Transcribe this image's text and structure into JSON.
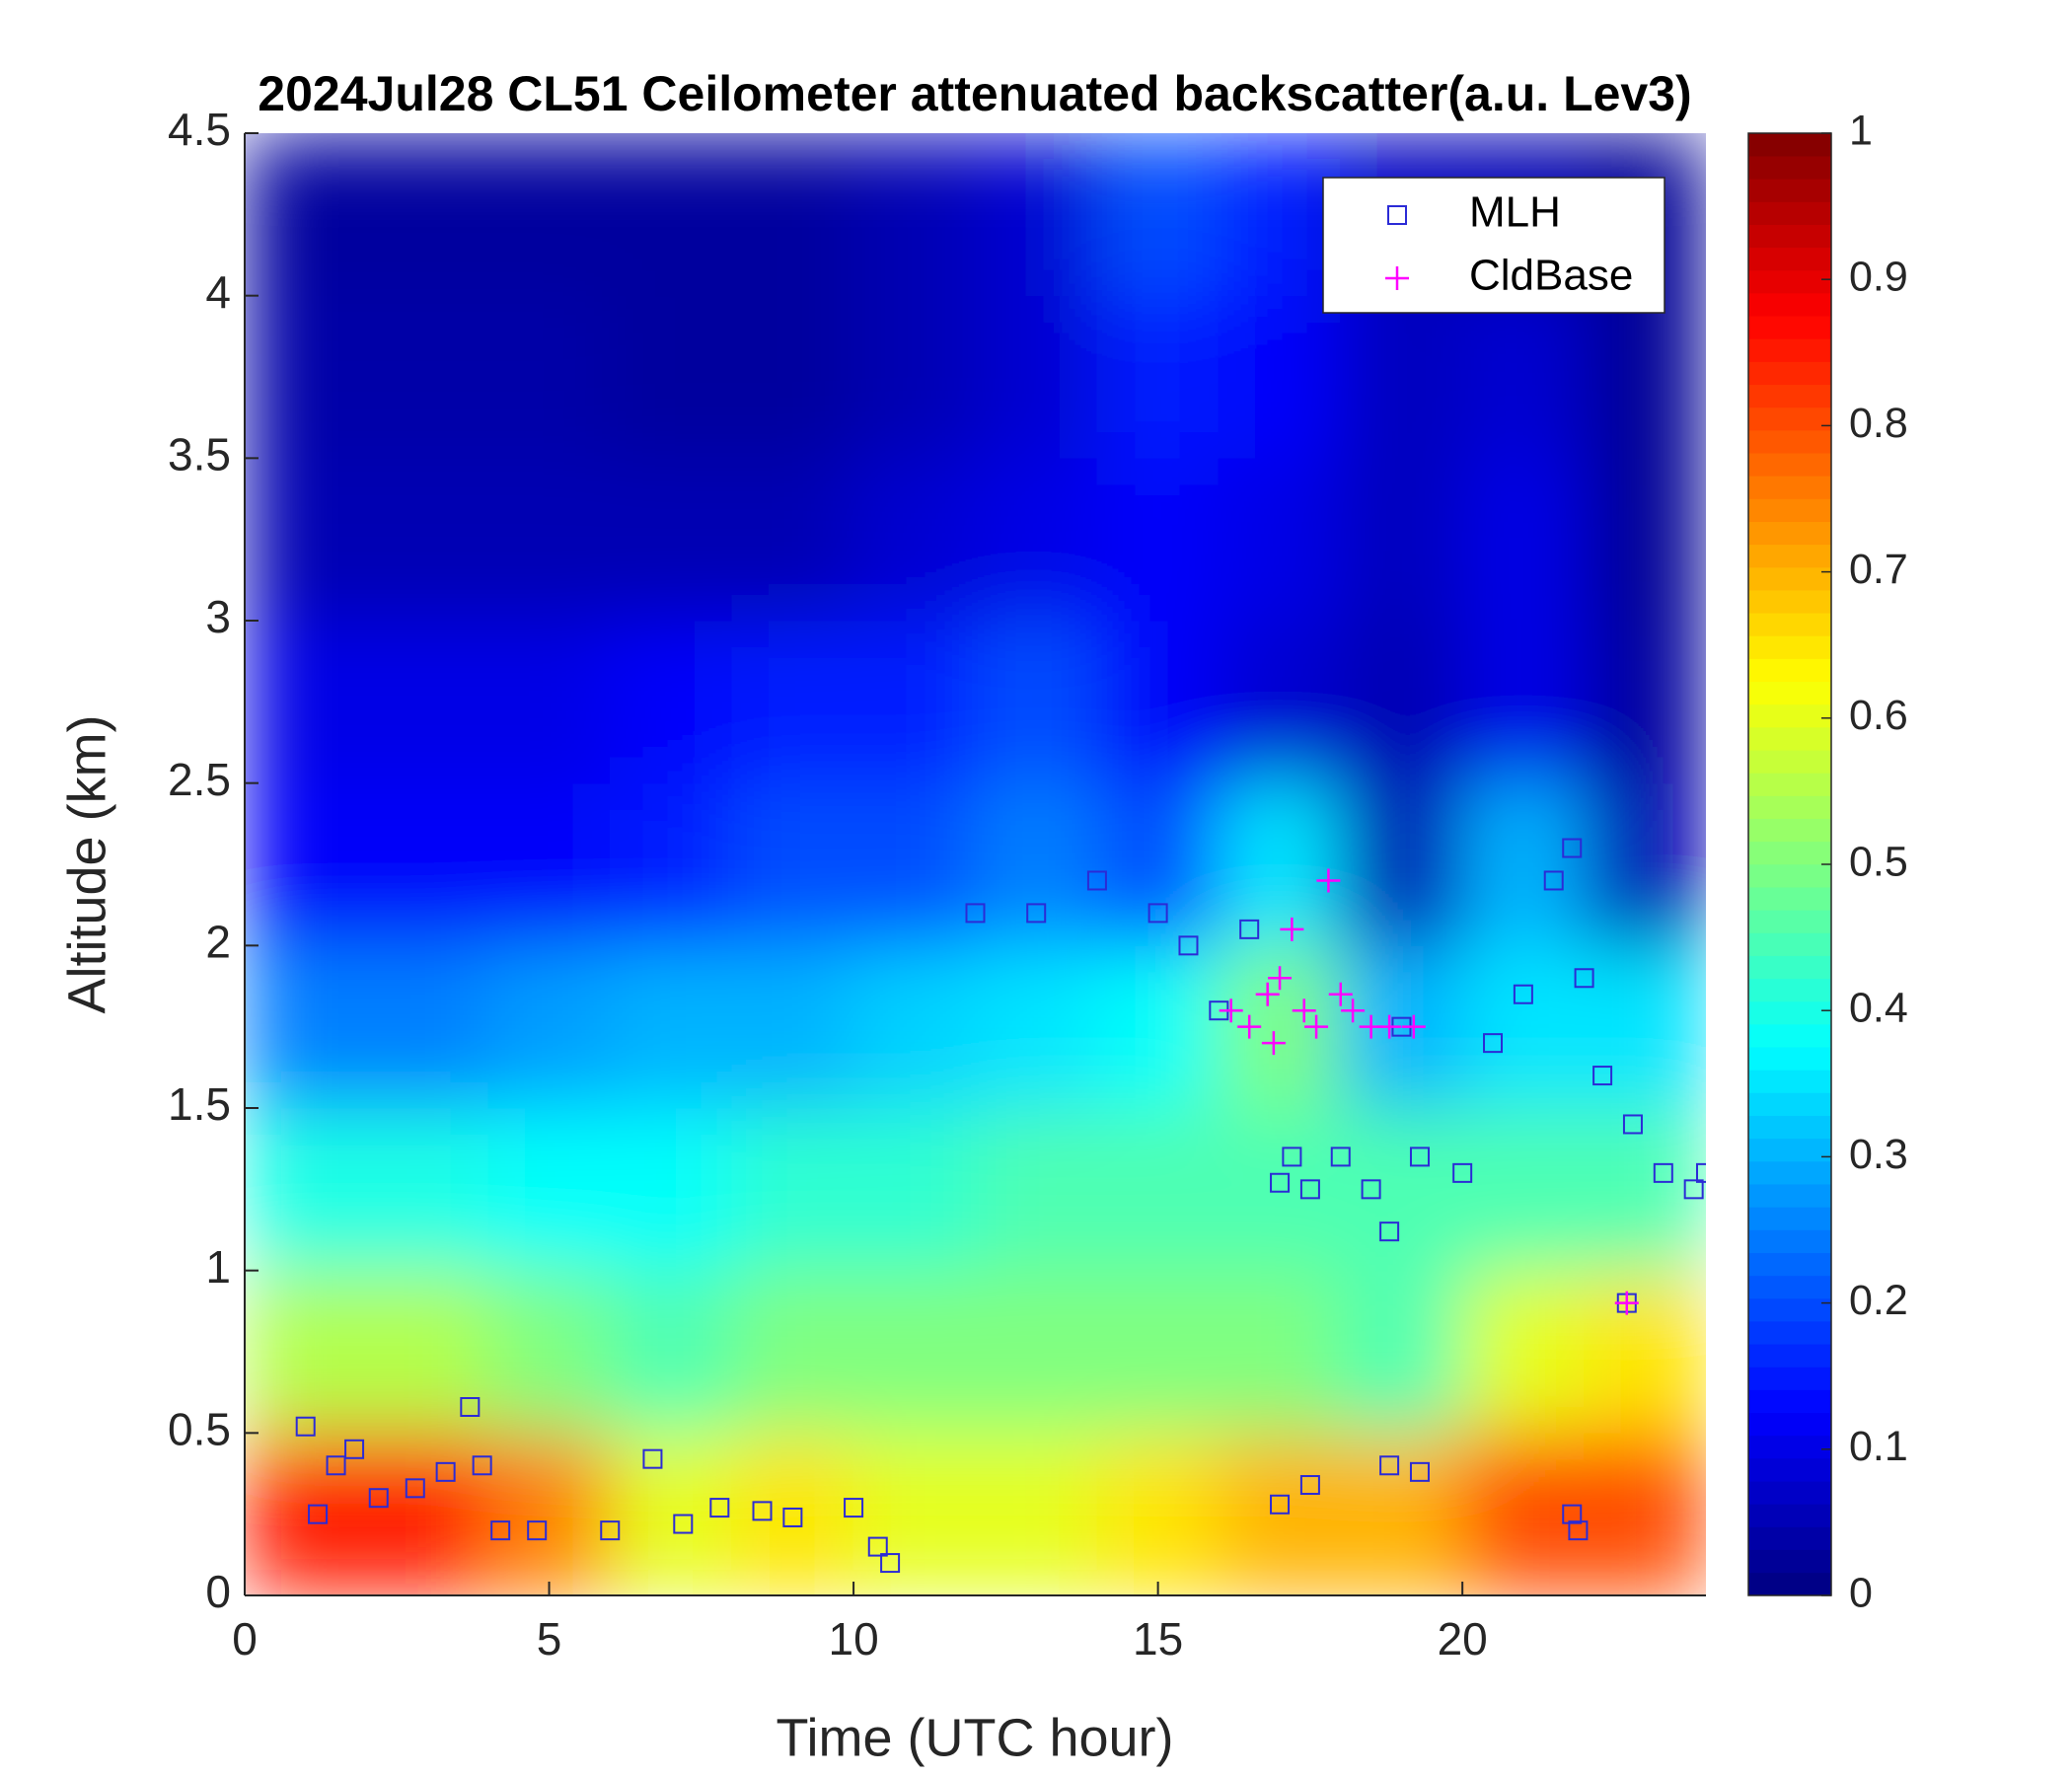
{
  "chart_data": {
    "type": "heatmap",
    "title": "2024Jul28 CL51 Ceilometer attenuated backscatter(a.u. Lev3)",
    "xlabel": "Time (UTC hour)",
    "ylabel": "Altitude (km)",
    "colormap": "jet",
    "xlim": [
      0,
      24
    ],
    "ylim": [
      0,
      4.5
    ],
    "clim": [
      0,
      1
    ],
    "xticks": [
      0,
      5,
      10,
      15,
      20
    ],
    "yticks": [
      0,
      0.5,
      1,
      1.5,
      2,
      2.5,
      3,
      3.5,
      4,
      4.5
    ],
    "cticks": [
      0,
      0.1,
      0.2,
      0.3,
      0.4,
      0.5,
      0.6,
      0.7,
      0.8,
      0.9,
      1
    ],
    "xbins": [
      0,
      2,
      4,
      6,
      8,
      10,
      12,
      14,
      16,
      18,
      20,
      22,
      24
    ],
    "ybins": [
      0,
      0.5,
      1,
      1.5,
      2,
      2.5,
      3,
      3.5,
      4,
      4.5
    ],
    "z": [
      [
        0.85,
        0.85,
        0.75,
        0.6,
        0.65,
        0.6,
        0.6,
        0.65,
        0.7,
        0.7,
        0.8,
        0.8
      ],
      [
        0.55,
        0.55,
        0.5,
        0.45,
        0.5,
        0.5,
        0.5,
        0.5,
        0.5,
        0.45,
        0.6,
        0.65
      ],
      [
        0.4,
        0.4,
        0.38,
        0.38,
        0.42,
        0.42,
        0.45,
        0.45,
        0.45,
        0.45,
        0.45,
        0.45
      ],
      [
        0.25,
        0.25,
        0.28,
        0.3,
        0.3,
        0.33,
        0.35,
        0.38,
        0.5,
        0.3,
        0.35,
        0.35
      ],
      [
        0.12,
        0.12,
        0.12,
        0.15,
        0.2,
        0.2,
        0.25,
        0.2,
        0.35,
        0.05,
        0.3,
        0.05
      ],
      [
        0.1,
        0.1,
        0.1,
        0.12,
        0.15,
        0.15,
        0.2,
        0.12,
        0.08,
        0.05,
        0.1,
        0.03
      ],
      [
        0.05,
        0.05,
        0.05,
        0.05,
        0.05,
        0.08,
        0.1,
        0.12,
        0.1,
        0.06,
        0.1,
        0.02
      ],
      [
        0.04,
        0.04,
        0.04,
        0.03,
        0.03,
        0.05,
        0.08,
        0.15,
        0.12,
        0.06,
        0.08,
        0.02
      ],
      [
        0.03,
        0.03,
        0.03,
        0.03,
        0.03,
        0.05,
        0.08,
        0.2,
        0.15,
        0.06,
        0.05,
        0.02
      ]
    ],
    "legend": "northeast",
    "series": [
      {
        "name": "MLH",
        "marker": "square",
        "color": "#2b2bd6",
        "x": [
          1,
          1.2,
          1.5,
          1.8,
          2.2,
          2.8,
          3.3,
          3.7,
          3.9,
          4.2,
          4.8,
          6,
          6.7,
          7.2,
          7.8,
          8.5,
          9,
          10,
          10.4,
          10.6,
          12,
          13,
          14,
          15,
          15.5,
          16,
          16.5,
          17,
          17.2,
          17.5,
          17.5,
          17,
          18,
          18.5,
          18.8,
          19,
          19.3,
          18.8,
          19.3,
          20,
          20.5,
          21,
          21.5,
          21.8,
          22,
          22.3,
          22.8,
          23.3,
          23.8,
          24,
          21.8,
          21.9,
          22.7
        ],
        "y": [
          0.52,
          0.25,
          0.4,
          0.45,
          0.3,
          0.33,
          0.38,
          0.58,
          0.4,
          0.2,
          0.2,
          0.2,
          0.42,
          0.22,
          0.27,
          0.26,
          0.24,
          0.27,
          0.15,
          0.1,
          2.1,
          2.1,
          2.2,
          2.1,
          2.0,
          1.8,
          2.05,
          1.27,
          1.35,
          1.25,
          0.34,
          0.28,
          1.35,
          1.25,
          1.12,
          1.75,
          1.35,
          0.4,
          0.38,
          1.3,
          1.7,
          1.85,
          2.2,
          2.3,
          1.9,
          1.6,
          1.45,
          1.3,
          1.25,
          1.3,
          0.25,
          0.2,
          0.9
        ]
      },
      {
        "name": "CldBase",
        "marker": "plus",
        "color": "#ff00ff",
        "x": [
          16.2,
          16.5,
          16.8,
          17,
          17.2,
          17.4,
          17.6,
          17.8,
          18,
          18.2,
          18.5,
          18.8,
          19.2,
          16.9,
          22.7
        ],
        "y": [
          1.8,
          1.75,
          1.85,
          1.9,
          2.05,
          1.8,
          1.75,
          2.2,
          1.85,
          1.8,
          1.75,
          1.75,
          1.75,
          1.7,
          0.9
        ]
      }
    ]
  }
}
